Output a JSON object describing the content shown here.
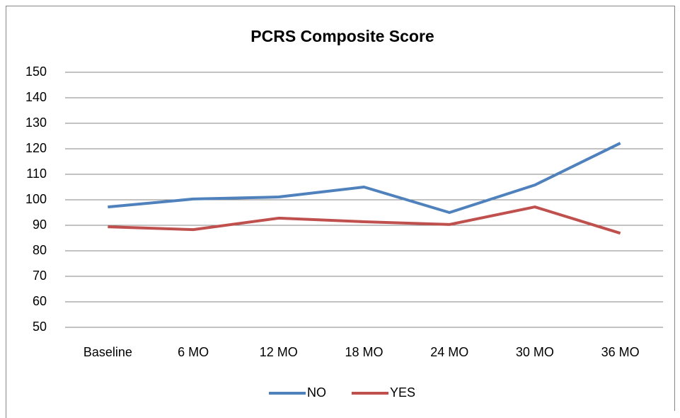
{
  "chart_data": {
    "type": "line",
    "title": "PCRS Composite Score",
    "categories": [
      "Baseline",
      "6 MO",
      "12 MO",
      "18 MO",
      "24 MO",
      "30 MO",
      "36 MO"
    ],
    "series": [
      {
        "name": "NO",
        "color": "#4f81bd",
        "values": [
          97.2,
          100.3,
          101.1,
          105,
          95,
          105.8,
          122.2
        ]
      },
      {
        "name": "YES",
        "color": "#c0504d",
        "values": [
          89.4,
          88.3,
          92.8,
          91.4,
          90.3,
          97.2,
          86.9
        ]
      }
    ],
    "ylim": [
      50,
      150
    ],
    "yticks": [
      50,
      60,
      70,
      80,
      90,
      100,
      110,
      120,
      130,
      140,
      150
    ],
    "grid": true,
    "legend": "bottom"
  }
}
